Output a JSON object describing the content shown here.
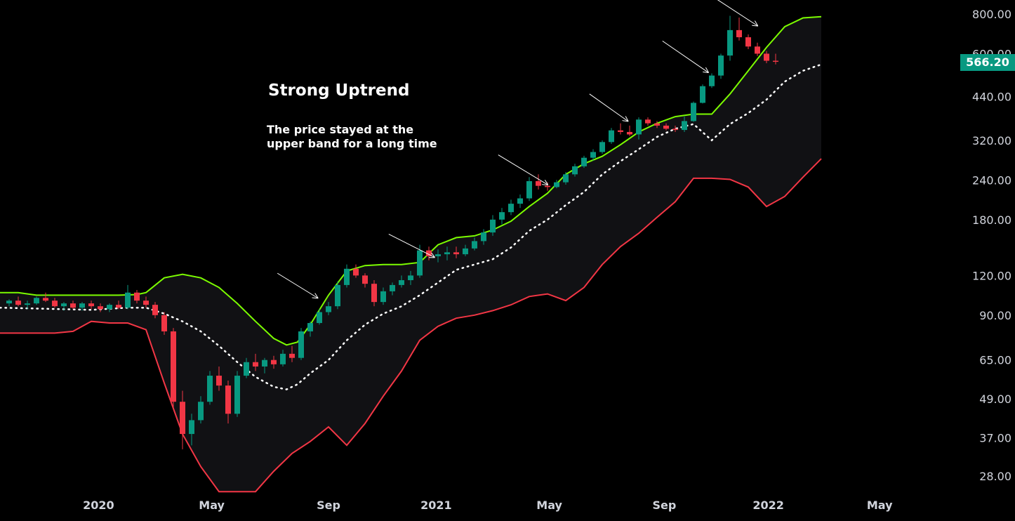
{
  "chart_data": {
    "type": "candlestick",
    "y_scale": "log",
    "ylim": [
      25,
      850
    ],
    "y_ticks": [
      "800.00",
      "600.00",
      "440.00",
      "320.00",
      "240.00",
      "180.00",
      "120.00",
      "90.00",
      "65.00",
      "49.00",
      "37.00",
      "28.00"
    ],
    "x_ticks": [
      "2020",
      "May",
      "Sep",
      "2021",
      "May",
      "Sep",
      "2022",
      "May"
    ],
    "last_price": "566.20",
    "grid": false,
    "colors": {
      "background": "#000000",
      "up": "#089981",
      "down": "#f23645",
      "upper_band": "#7cfc00",
      "lower_band": "#f23645",
      "middle_band": "#ffffff",
      "band_fill": "#111114"
    },
    "annotation": {
      "title": "Strong Uptrend",
      "text_line1": "The price stayed at the",
      "text_line2": "upper band for a long time"
    },
    "upper_band": [
      [
        -0.5,
        106
      ],
      [
        0.5,
        106
      ],
      [
        1.5,
        104
      ],
      [
        2.5,
        104
      ],
      [
        2.5,
        104
      ],
      [
        4.5,
        104
      ],
      [
        6,
        104
      ],
      [
        7,
        104.5
      ],
      [
        7.5,
        106
      ],
      [
        8.5,
        118
      ],
      [
        9.5,
        121
      ],
      [
        10.5,
        118
      ],
      [
        11.5,
        110
      ],
      [
        12.5,
        98
      ],
      [
        13.5,
        86
      ],
      [
        14.5,
        76
      ],
      [
        15.2,
        72.5
      ],
      [
        15.8,
        74
      ],
      [
        16.5,
        84
      ],
      [
        17.5,
        104
      ],
      [
        18.5,
        124
      ],
      [
        19.5,
        129
      ],
      [
        20.5,
        130
      ],
      [
        21.5,
        130
      ],
      [
        22.5,
        132
      ],
      [
        23.5,
        150
      ],
      [
        24.5,
        158
      ],
      [
        25.5,
        160
      ],
      [
        26.5,
        167
      ],
      [
        27.5,
        178
      ],
      [
        28.5,
        198
      ],
      [
        29.5,
        218
      ],
      [
        30.5,
        250
      ],
      [
        31.5,
        270
      ],
      [
        32.5,
        285
      ],
      [
        33.5,
        310
      ],
      [
        34.5,
        340
      ],
      [
        35.5,
        362
      ],
      [
        36.5,
        380
      ],
      [
        37.5,
        387
      ],
      [
        38.5,
        387
      ],
      [
        39.5,
        448
      ],
      [
        40.5,
        530
      ],
      [
        41.5,
        628
      ],
      [
        42.5,
        730
      ],
      [
        43.5,
        778
      ],
      [
        44.5,
        785
      ]
    ],
    "middle_band": [
      [
        -0.5,
        95
      ],
      [
        4.5,
        93.5
      ],
      [
        6.5,
        95
      ],
      [
        7.5,
        95
      ],
      [
        8.5,
        91
      ],
      [
        9.5,
        86
      ],
      [
        10.5,
        80
      ],
      [
        11.5,
        72
      ],
      [
        12.5,
        64
      ],
      [
        13.5,
        57.5
      ],
      [
        14.5,
        53.5
      ],
      [
        15.2,
        52.5
      ],
      [
        15.8,
        54.5
      ],
      [
        16.5,
        59
      ],
      [
        17.5,
        65
      ],
      [
        18.5,
        75
      ],
      [
        19.5,
        84
      ],
      [
        20.5,
        91
      ],
      [
        21.5,
        96
      ],
      [
        22.5,
        104
      ],
      [
        23.5,
        114
      ],
      [
        24.5,
        125
      ],
      [
        25.5,
        130
      ],
      [
        26.5,
        135
      ],
      [
        27.5,
        147
      ],
      [
        28.5,
        166
      ],
      [
        29.5,
        180
      ],
      [
        30.5,
        200
      ],
      [
        31.5,
        220
      ],
      [
        32.5,
        250
      ],
      [
        33.5,
        275
      ],
      [
        34.5,
        300
      ],
      [
        35.5,
        328
      ],
      [
        36.5,
        348
      ],
      [
        37.5,
        360
      ],
      [
        38.5,
        320
      ],
      [
        39.5,
        360
      ],
      [
        40.5,
        390
      ],
      [
        41.5,
        430
      ],
      [
        42.5,
        490
      ],
      [
        43.5,
        530
      ],
      [
        44.5,
        555
      ]
    ],
    "lower_band": [
      [
        -0.5,
        79
      ],
      [
        2.5,
        79
      ],
      [
        3.5,
        80
      ],
      [
        4.5,
        86
      ],
      [
        5.5,
        85
      ],
      [
        6.5,
        85
      ],
      [
        7.5,
        81
      ],
      [
        8.5,
        55
      ],
      [
        9.5,
        38
      ],
      [
        10.5,
        30
      ],
      [
        11.5,
        25
      ],
      [
        12.5,
        25
      ],
      [
        13.5,
        25
      ],
      [
        14.5,
        29
      ],
      [
        15.5,
        33
      ],
      [
        16.5,
        36
      ],
      [
        17.5,
        40
      ],
      [
        18.5,
        35
      ],
      [
        19.5,
        41
      ],
      [
        20.5,
        50
      ],
      [
        21.5,
        60
      ],
      [
        22.5,
        75
      ],
      [
        23.5,
        83
      ],
      [
        24.5,
        88
      ],
      [
        25.5,
        90
      ],
      [
        26.5,
        93
      ],
      [
        27.5,
        97
      ],
      [
        28.5,
        103
      ],
      [
        29.5,
        105
      ],
      [
        30.5,
        100
      ],
      [
        31.5,
        110
      ],
      [
        32.5,
        130
      ],
      [
        33.5,
        148
      ],
      [
        34.5,
        163
      ],
      [
        35.5,
        183
      ],
      [
        36.5,
        205
      ],
      [
        37.5,
        243
      ],
      [
        38.5,
        243
      ],
      [
        39.5,
        241
      ],
      [
        40.5,
        228
      ],
      [
        41.5,
        198
      ],
      [
        42.5,
        213
      ],
      [
        43.5,
        245
      ],
      [
        44.5,
        280
      ]
    ],
    "candles": [
      [
        0,
        98,
        101,
        96,
        100
      ],
      [
        0.5,
        100,
        103,
        96,
        97
      ],
      [
        1,
        97,
        100,
        94,
        98
      ],
      [
        1.5,
        98,
        103,
        97,
        102
      ],
      [
        2,
        102,
        106,
        99,
        100
      ],
      [
        2.5,
        100,
        102,
        95,
        96
      ],
      [
        3,
        96,
        99,
        93,
        98
      ],
      [
        3.5,
        98,
        100,
        94,
        95
      ],
      [
        4,
        95,
        99,
        93,
        98
      ],
      [
        4.5,
        98,
        100,
        94,
        96
      ],
      [
        5,
        96,
        98,
        92,
        94
      ],
      [
        5.5,
        94,
        98,
        92,
        97
      ],
      [
        6,
        97,
        100,
        94,
        95
      ],
      [
        6.5,
        95,
        112,
        94,
        106
      ],
      [
        7,
        106,
        108,
        98,
        100
      ],
      [
        7.5,
        100,
        103,
        95,
        97
      ],
      [
        8,
        97,
        99,
        88,
        90
      ],
      [
        8.5,
        90,
        92,
        78,
        80
      ],
      [
        9,
        80,
        82,
        46,
        48
      ],
      [
        9.5,
        48,
        52,
        34,
        38
      ],
      [
        10,
        38,
        44,
        35,
        42
      ],
      [
        10.5,
        42,
        50,
        41,
        48
      ],
      [
        11,
        48,
        60,
        47,
        58
      ],
      [
        11.5,
        58,
        62,
        52,
        54
      ],
      [
        12,
        54,
        56,
        41,
        44
      ],
      [
        12.5,
        44,
        60,
        43,
        58
      ],
      [
        13,
        58,
        66,
        57,
        64
      ],
      [
        13.5,
        64,
        68,
        60,
        62
      ],
      [
        14,
        62,
        66,
        59,
        65
      ],
      [
        14.5,
        65,
        67,
        61,
        63
      ],
      [
        15,
        63,
        70,
        62,
        68
      ],
      [
        15.5,
        68,
        72,
        64,
        66
      ],
      [
        16,
        66,
        82,
        65,
        80
      ],
      [
        16.5,
        80,
        86,
        77,
        85
      ],
      [
        17,
        85,
        94,
        84,
        92
      ],
      [
        17.5,
        92,
        99,
        90,
        96
      ],
      [
        18,
        96,
        115,
        94,
        112
      ],
      [
        18.5,
        112,
        130,
        110,
        126
      ],
      [
        19,
        126,
        130,
        118,
        120
      ],
      [
        19.5,
        120,
        122,
        110,
        113
      ],
      [
        20,
        113,
        116,
        96,
        99
      ],
      [
        20.5,
        99,
        110,
        97,
        107
      ],
      [
        21,
        107,
        114,
        104,
        112
      ],
      [
        21.5,
        112,
        120,
        110,
        116
      ],
      [
        22,
        116,
        124,
        112,
        120
      ],
      [
        22.5,
        120,
        150,
        118,
        144
      ],
      [
        23,
        144,
        148,
        134,
        138
      ],
      [
        23.5,
        138,
        145,
        132,
        140
      ],
      [
        24,
        140,
        148,
        134,
        142
      ],
      [
        24.5,
        142,
        148,
        136,
        140
      ],
      [
        25,
        140,
        150,
        138,
        146
      ],
      [
        25.5,
        146,
        158,
        144,
        154
      ],
      [
        26,
        154,
        168,
        150,
        164
      ],
      [
        26.5,
        164,
        186,
        160,
        180
      ],
      [
        27,
        180,
        196,
        174,
        190
      ],
      [
        27.5,
        190,
        208,
        186,
        202
      ],
      [
        28,
        202,
        216,
        196,
        210
      ],
      [
        28.5,
        210,
        245,
        206,
        238
      ],
      [
        29,
        238,
        250,
        224,
        230
      ],
      [
        29.5,
        230,
        236,
        222,
        228
      ],
      [
        30,
        228,
        240,
        226,
        236
      ],
      [
        30.5,
        236,
        254,
        232,
        250
      ],
      [
        31,
        250,
        270,
        246,
        265
      ],
      [
        31.5,
        265,
        286,
        262,
        282
      ],
      [
        32,
        282,
        300,
        276,
        294
      ],
      [
        32.5,
        294,
        320,
        290,
        316
      ],
      [
        33,
        316,
        350,
        312,
        344
      ],
      [
        33.5,
        344,
        362,
        334,
        340
      ],
      [
        34,
        340,
        356,
        330,
        334
      ],
      [
        34.5,
        334,
        378,
        322,
        372
      ],
      [
        35,
        372,
        378,
        356,
        362
      ],
      [
        35.5,
        362,
        368,
        350,
        356
      ],
      [
        36,
        356,
        362,
        344,
        348
      ],
      [
        36.5,
        348,
        356,
        340,
        345
      ],
      [
        37,
        345,
        380,
        340,
        368
      ],
      [
        37.5,
        368,
        424,
        366,
        420
      ],
      [
        38,
        420,
        480,
        418,
        474
      ],
      [
        38.5,
        474,
        520,
        468,
        512
      ],
      [
        39,
        512,
        600,
        500,
        592
      ],
      [
        39.5,
        592,
        790,
        570,
        712
      ],
      [
        40,
        712,
        780,
        660,
        676
      ],
      [
        40.5,
        676,
        690,
        620,
        632
      ],
      [
        41,
        632,
        650,
        590,
        600
      ],
      [
        41.5,
        600,
        612,
        560,
        570
      ],
      [
        42,
        570,
        600,
        555,
        566
      ]
    ]
  }
}
